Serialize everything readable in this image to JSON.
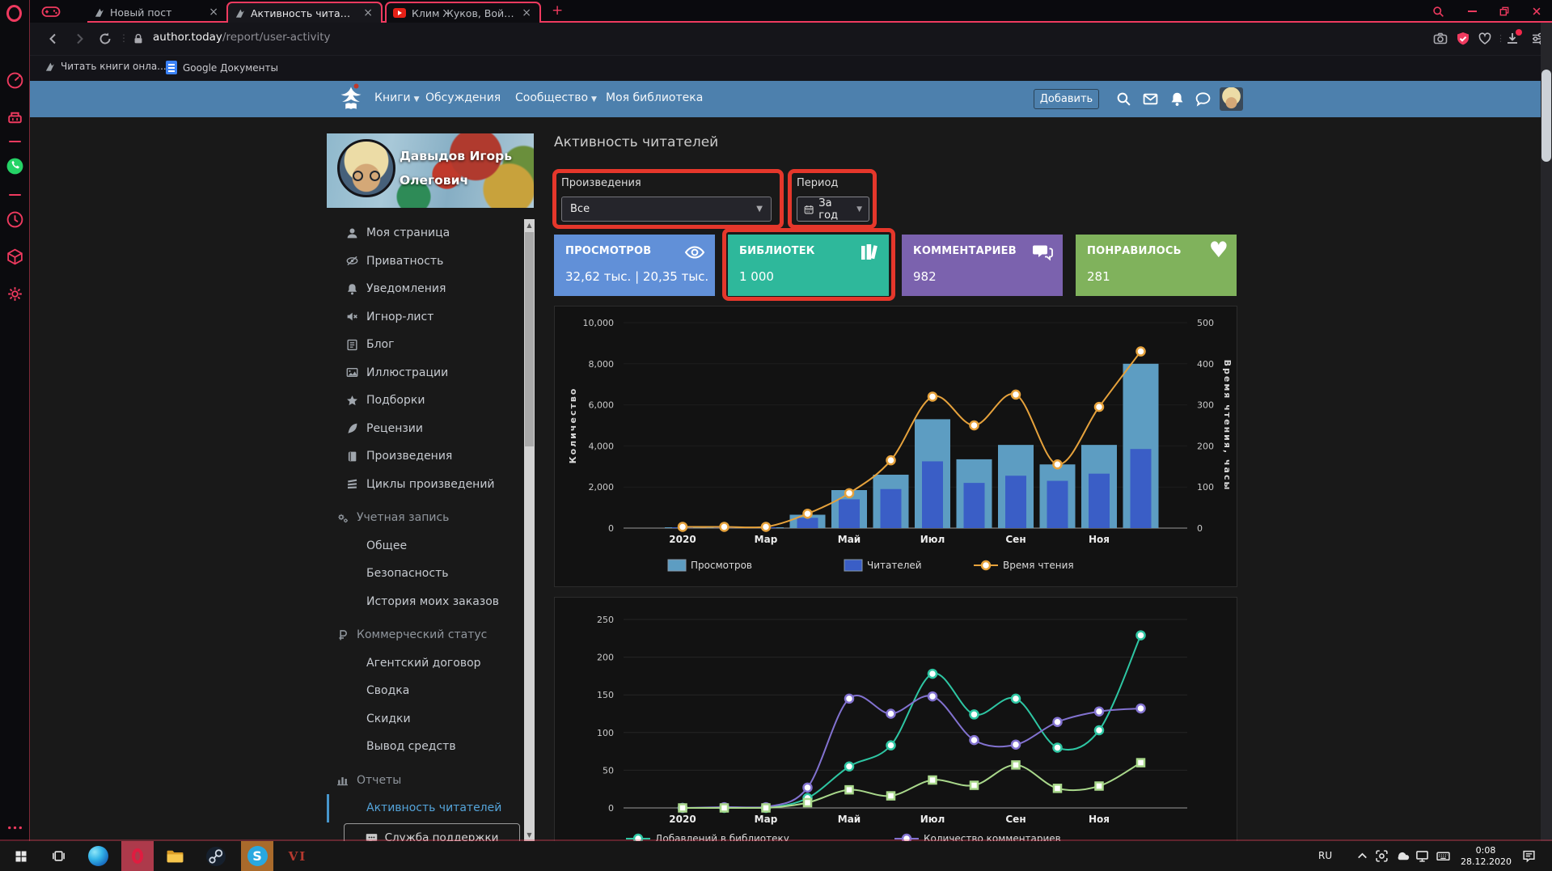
{
  "browser": {
    "tabs": [
      {
        "title": "Новый пост"
      },
      {
        "title": "Активность читателей"
      },
      {
        "title": "Клим Жуков, Война во Вы"
      }
    ],
    "address": {
      "domain": "author.today",
      "path": "/report/user-activity"
    },
    "bookmarks": [
      {
        "label": "Читать книги онла..."
      },
      {
        "label": "Google Документы"
      }
    ]
  },
  "site": {
    "nav": [
      {
        "label": "Книги"
      },
      {
        "label": "Обсуждения"
      },
      {
        "label": "Сообщество"
      },
      {
        "label": "Моя библиотека"
      }
    ],
    "add_button": "Добавить"
  },
  "profile": {
    "name_line1": "Давыдов Игорь",
    "name_line2": "Олегович"
  },
  "sidebar": {
    "items": [
      {
        "label": "Моя страница",
        "icon": "user",
        "type": "item"
      },
      {
        "label": "Приватность",
        "icon": "eye-slash",
        "type": "item"
      },
      {
        "label": "Уведомления",
        "icon": "bell",
        "type": "item"
      },
      {
        "label": "Игнор-лист",
        "icon": "mute",
        "type": "item"
      },
      {
        "label": "Блог",
        "icon": "blog",
        "type": "item"
      },
      {
        "label": "Иллюстрации",
        "icon": "image",
        "type": "item"
      },
      {
        "label": "Подборки",
        "icon": "star",
        "type": "item"
      },
      {
        "label": "Рецензии",
        "icon": "quill",
        "type": "item"
      },
      {
        "label": "Произведения",
        "icon": "book",
        "type": "item"
      },
      {
        "label": "Циклы произведений",
        "icon": "books",
        "type": "item"
      },
      {
        "label": "Учетная запись",
        "icon": "gears",
        "type": "header"
      },
      {
        "label": "Общее",
        "type": "sub"
      },
      {
        "label": "Безопасность",
        "type": "sub"
      },
      {
        "label": "История моих заказов",
        "type": "sub"
      },
      {
        "label": "Коммерческий статус",
        "icon": "ruble",
        "type": "header"
      },
      {
        "label": "Агентский договор",
        "type": "sub"
      },
      {
        "label": "Сводка",
        "type": "sub"
      },
      {
        "label": "Скидки",
        "type": "sub"
      },
      {
        "label": "Вывод средств",
        "type": "sub"
      },
      {
        "label": "Отчеты",
        "icon": "bar-chart",
        "type": "header"
      },
      {
        "label": "Активность читателей",
        "type": "sub",
        "active": true
      }
    ],
    "support_button": "Служба поддержки"
  },
  "report": {
    "title": "Активность читателей",
    "filters": {
      "works_label": "Произведения",
      "works_value": "Все",
      "period_label": "Период",
      "period_value": "За год"
    },
    "stat_cards": [
      {
        "label": "ПРОСМОТРОВ",
        "value": "32,62 тыс. | 20,35 тыс.",
        "icon": "eye",
        "color": "#6190d8"
      },
      {
        "label": "БИБЛИОТЕК",
        "value": "1 000",
        "icon": "library",
        "color": "#2eb89b"
      },
      {
        "label": "КОММЕНТАРИЕВ",
        "value": "982",
        "icon": "comments",
        "color": "#7b62ae"
      },
      {
        "label": "ПОНРАВИЛОСЬ",
        "value": "281",
        "icon": "heart",
        "color": "#80b25c"
      }
    ]
  },
  "chart_data": [
    {
      "type": "bar+line",
      "slots": 12,
      "x_tick_labels": [
        "2020",
        "Мар",
        "Май",
        "Июл",
        "Сен",
        "Ноя"
      ],
      "x_tick_slots": [
        0,
        2,
        4,
        6,
        8,
        10
      ],
      "left_axis": {
        "label": "Количество",
        "min": 0,
        "max": 10000,
        "ticks": [
          0,
          2000,
          4000,
          6000,
          8000,
          10000
        ]
      },
      "right_axis": {
        "label": "Время чтения, часы",
        "min": 0,
        "max": 500,
        "ticks": [
          0,
          100,
          200,
          300,
          400,
          500
        ]
      },
      "series": [
        {
          "name": "Просмотров",
          "type": "bar",
          "axis": "left",
          "color": "#5d9dc2",
          "values": [
            15,
            15,
            35,
            650,
            1850,
            2600,
            5300,
            3350,
            4050,
            3100,
            4050,
            8000
          ]
        },
        {
          "name": "Читателей",
          "type": "bar",
          "axis": "left",
          "color": "#3a5ec6",
          "values": [
            8,
            8,
            18,
            500,
            1400,
            1900,
            3250,
            2200,
            2550,
            2300,
            2650,
            3850
          ]
        },
        {
          "name": "Время чтения",
          "type": "line",
          "axis": "right",
          "color": "#e6a23c",
          "marker": "circle",
          "values": [
            3,
            3,
            3,
            35,
            85,
            165,
            320,
            250,
            325,
            155,
            295,
            430
          ]
        }
      ],
      "legend": [
        "Просмотров",
        "Читателей",
        "Время чтения"
      ]
    },
    {
      "type": "line",
      "slots": 12,
      "x_tick_labels": [
        "2020",
        "Мар",
        "Май",
        "Июл",
        "Сен",
        "Ноя"
      ],
      "x_tick_slots": [
        0,
        2,
        4,
        6,
        8,
        10
      ],
      "left_axis": {
        "label": "",
        "min": 0,
        "max": 250,
        "ticks": [
          0,
          50,
          100,
          150,
          200,
          250
        ]
      },
      "series": [
        {
          "name": "Добавлений в библиотеку",
          "type": "line",
          "axis": "left",
          "color": "#2ec6a3",
          "marker": "circle",
          "values": [
            0,
            0,
            0,
            13,
            55,
            83,
            178,
            124,
            145,
            80,
            103,
            229
          ]
        },
        {
          "name": "Количество комментариев",
          "type": "line",
          "axis": "left",
          "color": "#8272d0",
          "marker": "circle",
          "values": [
            0,
            1,
            1,
            27,
            145,
            125,
            148,
            90,
            84,
            114,
            128,
            132
          ]
        },
        {
          "name": "",
          "type": "line",
          "axis": "left",
          "color": "#a9d88b",
          "marker": "square",
          "values": [
            0,
            0,
            0,
            7,
            24,
            16,
            37,
            30,
            57,
            26,
            29,
            60
          ]
        }
      ],
      "legend": [
        "Добавлений в библиотеку",
        "Количество комментариев"
      ]
    }
  ],
  "taskbar": {
    "vi_label": "VI"
  },
  "tray": {
    "lang": "RU",
    "time": "0:08",
    "date": "28.12.2020"
  },
  "annotation_color": "#e5372b",
  "icons": {
    "opera-logo": "ring-O",
    "gx-corner": "gamepad",
    "speed-dial": "speedometer",
    "cleaner": "basket",
    "whatsapp": "green-phone",
    "history": "clock",
    "extensions": "cube",
    "settings": "gear",
    "more": "ellipsis",
    "search": "magnifier",
    "minimize": "dash",
    "restore": "overlapping-squares",
    "close": "cross",
    "back": "chevron-left",
    "forward": "chevron-right",
    "reload": "circular-arrow",
    "lock": "padlock",
    "snapshot": "camera",
    "adblock-shield": "shield-check",
    "favorites": "heart-outline",
    "downloads": "arrow-down-tray",
    "easy-setup": "sliders",
    "phoenix-logo": "white-phoenix-book",
    "mail": "envelope",
    "notifications": "bell",
    "messages": "chat-bubble",
    "card-eye": "eye",
    "card-library": "book-spines",
    "card-comments": "chat-bubbles",
    "card-heart": "heart",
    "calendar": "calendar-grid",
    "windows-start": "window-squares",
    "task-view": "film-rects",
    "hidden-icons": "chevron-up",
    "focus-assist": "corner-brackets",
    "onedrive": "cloud",
    "network": "monitor-cable",
    "touch-keyboard": "keyboard",
    "action-center": "note-pencil"
  }
}
